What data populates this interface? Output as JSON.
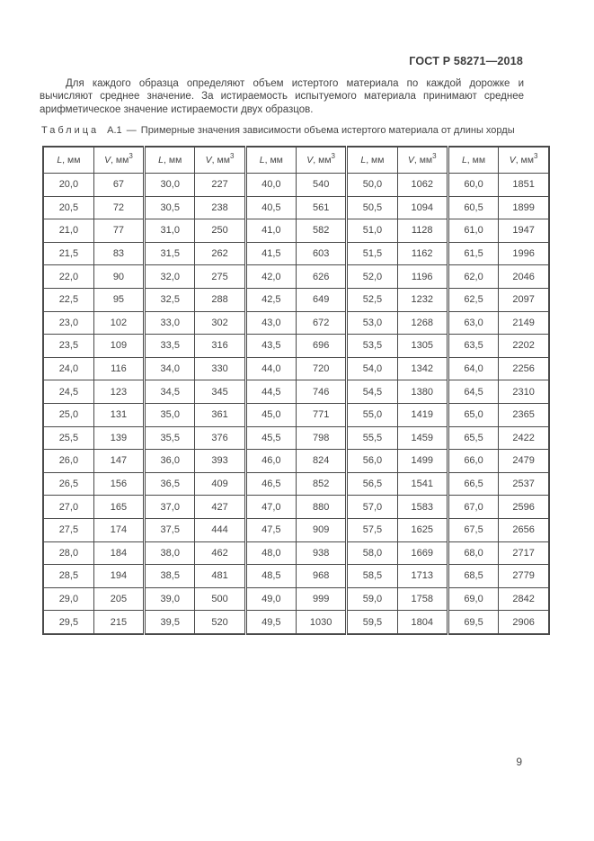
{
  "page": {
    "header_title": "ГОСТ Р 58271—2018",
    "page_number": "9"
  },
  "paragraph": "Для каждого образца определяют объем истертого материала по каждой дорожке и вычисляют среднее значение. За истираемость испытуемого материала принимают среднее арифметическое значение истираемости двух образцов.",
  "caption": {
    "label": "Таблица",
    "number": "А.1",
    "separator": "—",
    "text": "Примерные значения зависимости объема истертого материала от длины хорды"
  },
  "table": {
    "groups": 5,
    "header": {
      "l_var": "L",
      "l_unit": ", мм",
      "v_var": "V",
      "v_unit": ", мм",
      "v_sup": "3"
    },
    "rows": [
      [
        "20,0",
        "67",
        "30,0",
        "227",
        "40,0",
        "540",
        "50,0",
        "1062",
        "60,0",
        "1851"
      ],
      [
        "20,5",
        "72",
        "30,5",
        "238",
        "40,5",
        "561",
        "50,5",
        "1094",
        "60,5",
        "1899"
      ],
      [
        "21,0",
        "77",
        "31,0",
        "250",
        "41,0",
        "582",
        "51,0",
        "1128",
        "61,0",
        "1947"
      ],
      [
        "21,5",
        "83",
        "31,5",
        "262",
        "41,5",
        "603",
        "51,5",
        "1162",
        "61,5",
        "1996"
      ],
      [
        "22,0",
        "90",
        "32,0",
        "275",
        "42,0",
        "626",
        "52,0",
        "1196",
        "62,0",
        "2046"
      ],
      [
        "22,5",
        "95",
        "32,5",
        "288",
        "42,5",
        "649",
        "52,5",
        "1232",
        "62,5",
        "2097"
      ],
      [
        "23,0",
        "102",
        "33,0",
        "302",
        "43,0",
        "672",
        "53,0",
        "1268",
        "63,0",
        "2149"
      ],
      [
        "23,5",
        "109",
        "33,5",
        "316",
        "43,5",
        "696",
        "53,5",
        "1305",
        "63,5",
        "2202"
      ],
      [
        "24,0",
        "116",
        "34,0",
        "330",
        "44,0",
        "720",
        "54,0",
        "1342",
        "64,0",
        "2256"
      ],
      [
        "24,5",
        "123",
        "34,5",
        "345",
        "44,5",
        "746",
        "54,5",
        "1380",
        "64,5",
        "2310"
      ],
      [
        "25,0",
        "131",
        "35,0",
        "361",
        "45,0",
        "771",
        "55,0",
        "1419",
        "65,0",
        "2365"
      ],
      [
        "25,5",
        "139",
        "35,5",
        "376",
        "45,5",
        "798",
        "55,5",
        "1459",
        "65,5",
        "2422"
      ],
      [
        "26,0",
        "147",
        "36,0",
        "393",
        "46,0",
        "824",
        "56,0",
        "1499",
        "66,0",
        "2479"
      ],
      [
        "26,5",
        "156",
        "36,5",
        "409",
        "46,5",
        "852",
        "56,5",
        "1541",
        "66,5",
        "2537"
      ],
      [
        "27,0",
        "165",
        "37,0",
        "427",
        "47,0",
        "880",
        "57,0",
        "1583",
        "67,0",
        "2596"
      ],
      [
        "27,5",
        "174",
        "37,5",
        "444",
        "47,5",
        "909",
        "57,5",
        "1625",
        "67,5",
        "2656"
      ],
      [
        "28,0",
        "184",
        "38,0",
        "462",
        "48,0",
        "938",
        "58,0",
        "1669",
        "68,0",
        "2717"
      ],
      [
        "28,5",
        "194",
        "38,5",
        "481",
        "48,5",
        "968",
        "58,5",
        "1713",
        "68,5",
        "2779"
      ],
      [
        "29,0",
        "205",
        "39,0",
        "500",
        "49,0",
        "999",
        "59,0",
        "1758",
        "69,0",
        "2842"
      ],
      [
        "29,5",
        "215",
        "39,5",
        "520",
        "49,5",
        "1030",
        "59,5",
        "1804",
        "69,5",
        "2906"
      ]
    ]
  }
}
